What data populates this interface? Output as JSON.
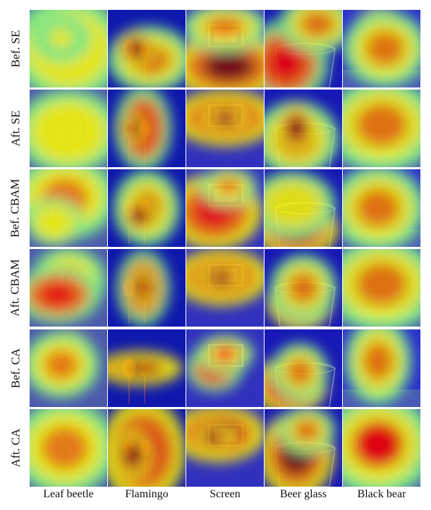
{
  "figure": {
    "rows": [
      {
        "label": "Bef. SE"
      },
      {
        "label": "Aft. SE"
      },
      {
        "label": "Bef. CBAM"
      },
      {
        "label": "Aft. CBAM"
      },
      {
        "label": "Bef. CA"
      },
      {
        "label": "Aft. CA"
      }
    ],
    "columns": [
      {
        "label": "Leaf beetle",
        "subject_icon": "beetle-icon"
      },
      {
        "label": "Flamingo",
        "subject_icon": "flamingo-icon"
      },
      {
        "label": "Screen",
        "subject_icon": "monitor-icon"
      },
      {
        "label": "Beer glass",
        "subject_icon": "glass-icon"
      },
      {
        "label": "Black bear",
        "subject_icon": "bear-icon"
      }
    ],
    "colormap": [
      "#00007f",
      "#0000ff",
      "#00ffff",
      "#7fff7f",
      "#ffff00",
      "#ff7f00",
      "#ff0000",
      "#7f0000"
    ],
    "backgrounds": [
      "#8aa36a",
      "#1c2c6a",
      "#5a5a88",
      "#2a2c78",
      "#4d5aa0"
    ]
  }
}
